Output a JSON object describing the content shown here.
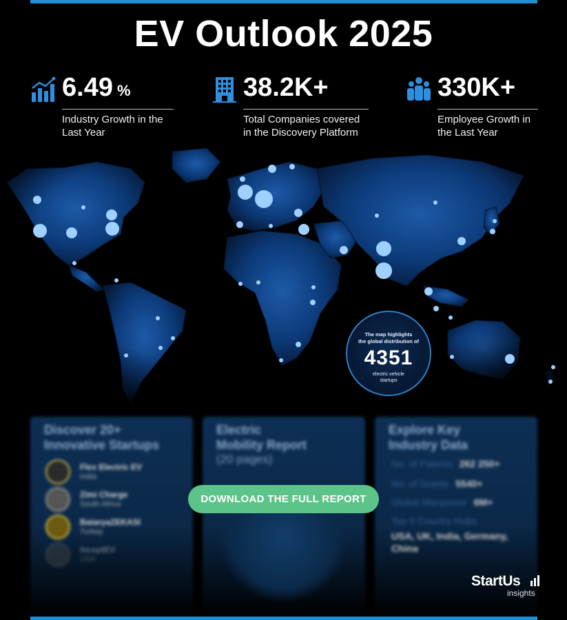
{
  "title": "EV Outlook 2025",
  "stats": [
    {
      "icon": "growth-chart-icon",
      "value": "6.49",
      "unit": "%",
      "label_line1": "Industry Growth in the",
      "label_line2": "Last Year"
    },
    {
      "icon": "building-icon",
      "value": "38.2K+",
      "label_line1": "Total Companies covered",
      "label_line2": "in the Discovery Platform"
    },
    {
      "icon": "employees-icon",
      "value": "330K+",
      "label_line1": "Employee Growth in",
      "label_line2": "the Last Year"
    }
  ],
  "badge": {
    "line1": "The map highlights",
    "line2": "the global distribution of",
    "number": "4351",
    "line3": "electric vehicle",
    "line4": "startups"
  },
  "cards": {
    "startups": {
      "title_line1": "Discover 20+",
      "title_line2": "Innovative Startups",
      "items": [
        {
          "name": "Flex Electric EV",
          "country": "India"
        },
        {
          "name": "Zimi Charge",
          "country": "South Africa"
        },
        {
          "name": "BataryaZEKASI",
          "country": "Turkey"
        },
        {
          "name": "InceptEV",
          "country": "USA"
        }
      ]
    },
    "report": {
      "title_line1": "Electric",
      "title_line2": "Mobility Report",
      "pages": "(20 pages)"
    },
    "data": {
      "title_line1": "Explore Key",
      "title_line2": "Industry Data",
      "rows": [
        {
          "key": "No. of Patents",
          "value": "262 250+"
        },
        {
          "key": "No. of Grants",
          "value": "5540+"
        },
        {
          "key": "Global Manpower",
          "value": "6M+"
        }
      ],
      "hubs_label": "Top 5 Country Hubs",
      "hubs_line1": "USA, UK, India, Germany,",
      "hubs_line2": "China"
    }
  },
  "download_button": "DOWNLOAD THE FULL REPORT",
  "brand": {
    "name": "StartUs",
    "sub": "insights"
  },
  "colors": {
    "accent": "#1f8fd6",
    "button": "#5cc389",
    "map_glow": "#0b3a78",
    "card": "#0d2f55"
  }
}
